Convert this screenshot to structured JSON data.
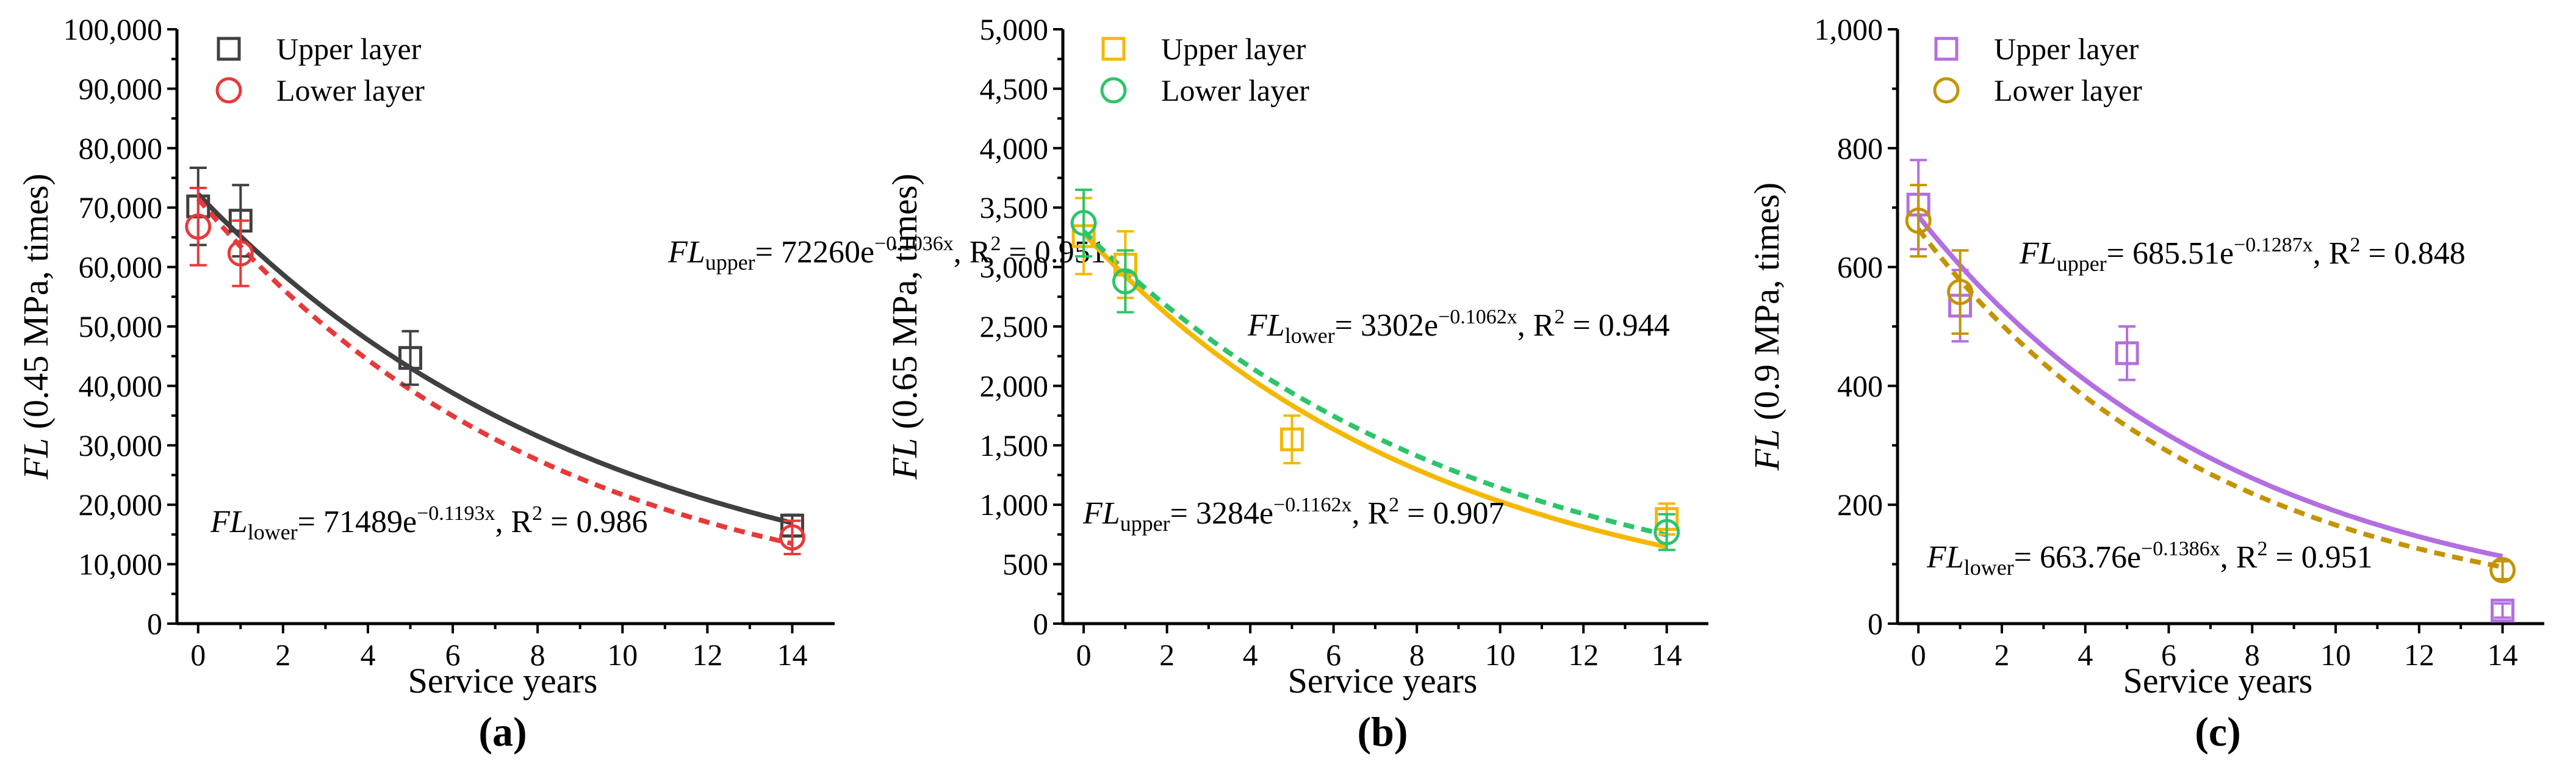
{
  "colors": {
    "upper_a": "#404040",
    "lower_a": "#e8393a",
    "upper_b": "#f5b800",
    "lower_b": "#2ec46a",
    "upper_c": "#b36ee0",
    "lower_c": "#c49400"
  },
  "chart_data": [
    {
      "type": "scatter",
      "panel": "(a)",
      "xlabel": "Service years",
      "ylabel": {
        "italic": "FL",
        "rest": " (0.45 MPa, times)"
      },
      "xlim": [
        -0.5,
        15
      ],
      "ylim": [
        0,
        100000
      ],
      "xticks": [
        0,
        2,
        4,
        6,
        8,
        10,
        12,
        14
      ],
      "yticks": [
        0,
        10000,
        20000,
        30000,
        40000,
        50000,
        60000,
        70000,
        80000,
        90000,
        100000
      ],
      "ytick_labels": [
        "0",
        "10,000",
        "20,000",
        "30,000",
        "40,000",
        "50,000",
        "60,000",
        "70,000",
        "80,000",
        "90,000",
        "100,000"
      ],
      "legend": [
        "Upper layer",
        "Lower layer"
      ],
      "series": [
        {
          "name": "Upper layer",
          "marker": "square",
          "color_key": "upper_a",
          "x": [
            0,
            1,
            5,
            14
          ],
          "y": [
            70200,
            67800,
            44700,
            16500
          ],
          "err": [
            6500,
            6000,
            4500,
            1800
          ],
          "fit": {
            "a": 72260,
            "b": -0.1036,
            "style": "solid"
          }
        },
        {
          "name": "Lower layer",
          "marker": "circle",
          "color_key": "lower_a",
          "x": [
            0,
            1,
            14
          ],
          "y": [
            66800,
            62300,
            14500
          ],
          "err": [
            6500,
            5500,
            2800
          ],
          "fit": {
            "a": 71489,
            "b": -0.1193,
            "style": "dashed"
          }
        }
      ],
      "equations": [
        {
          "pre": "FL",
          "sub": "upper",
          "text": "= 72260e",
          "sup": "−0.1036x",
          "tail": ", R",
          "r2sup": "2",
          "end": " = 0.951"
        },
        {
          "pre": "FL",
          "sub": "lower",
          "text": "= 71489e",
          "sup": "−0.1193x",
          "tail": ", R",
          "r2sup": "2",
          "end": " = 0.986"
        }
      ]
    },
    {
      "type": "scatter",
      "panel": "(b)",
      "xlabel": "Service years",
      "ylabel": {
        "italic": "FL",
        "rest": " (0.65 MPa, times)"
      },
      "xlim": [
        -0.5,
        15
      ],
      "ylim": [
        0,
        5000
      ],
      "xticks": [
        0,
        2,
        4,
        6,
        8,
        10,
        12,
        14
      ],
      "yticks": [
        0,
        500,
        1000,
        1500,
        2000,
        2500,
        3000,
        3500,
        4000,
        4500,
        5000
      ],
      "ytick_labels": [
        "0",
        "500",
        "1,000",
        "1,500",
        "2,000",
        "2,500",
        "3,000",
        "3,500",
        "4,000",
        "4,500",
        "5,000"
      ],
      "legend": [
        "Upper layer",
        "Lower layer"
      ],
      "series": [
        {
          "name": "Upper layer",
          "marker": "square",
          "color_key": "upper_b",
          "x": [
            0,
            1,
            5,
            14
          ],
          "y": [
            3260,
            3020,
            1550,
            880
          ],
          "err": [
            320,
            280,
            200,
            130
          ],
          "fit": {
            "a": 3284,
            "b": -0.1162,
            "style": "solid"
          }
        },
        {
          "name": "Lower layer",
          "marker": "circle",
          "color_key": "lower_b",
          "x": [
            0,
            1,
            14
          ],
          "y": [
            3370,
            2880,
            770
          ],
          "err": [
            280,
            260,
            150
          ],
          "fit": {
            "a": 3302,
            "b": -0.1062,
            "style": "dashed"
          }
        }
      ],
      "equations": [
        {
          "pre": "FL",
          "sub": "lower",
          "text": "= 3302e",
          "sup": "−0.1062x",
          "tail": ", R",
          "r2sup": "2",
          "end": " = 0.944"
        },
        {
          "pre": "FL",
          "sub": "upper",
          "text": "= 3284e",
          "sup": "−0.1162x",
          "tail": ", R",
          "r2sup": "2",
          "end": " = 0.907"
        }
      ]
    },
    {
      "type": "scatter",
      "panel": "(c)",
      "xlabel": "Service years",
      "ylabel": {
        "italic": "FL",
        "rest": " (0.9 MPa, times)"
      },
      "xlim": [
        -0.5,
        15
      ],
      "ylim": [
        0,
        1000
      ],
      "xticks": [
        0,
        2,
        4,
        6,
        8,
        10,
        12,
        14
      ],
      "yticks": [
        0,
        200,
        400,
        600,
        800,
        1000
      ],
      "ytick_labels": [
        "0",
        "200",
        "400",
        "600",
        "800",
        "1,000"
      ],
      "legend": [
        "Upper layer",
        "Lower layer"
      ],
      "series": [
        {
          "name": "Upper layer",
          "marker": "square",
          "color_key": "upper_c",
          "x": [
            0,
            1,
            5,
            14
          ],
          "y": [
            705,
            535,
            455,
            22
          ],
          "err": [
            75,
            60,
            45,
            12
          ],
          "fit": {
            "a": 685.51,
            "b": -0.1287,
            "style": "solid"
          }
        },
        {
          "name": "Lower layer",
          "marker": "circle",
          "color_key": "lower_c",
          "x": [
            0,
            1,
            14
          ],
          "y": [
            678,
            558,
            90
          ],
          "err": [
            60,
            70,
            15
          ],
          "fit": {
            "a": 663.76,
            "b": -0.1386,
            "style": "dashed"
          }
        }
      ],
      "equations": [
        {
          "pre": "FL",
          "sub": "upper",
          "text": "= 685.51e",
          "sup": "−0.1287x",
          "tail": ", R",
          "r2sup": "2",
          "end": " = 0.848"
        },
        {
          "pre": "FL",
          "sub": "lower",
          "text": "= 663.76e",
          "sup": "−0.1386x",
          "tail": ", R",
          "r2sup": "2",
          "end": " = 0.951"
        }
      ]
    }
  ]
}
